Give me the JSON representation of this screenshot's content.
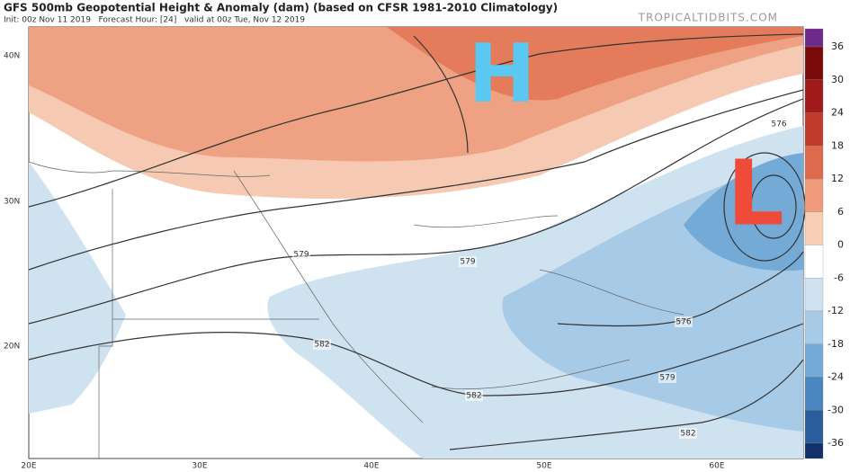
{
  "header": {
    "title": "GFS 500mb Geopotential Height & Anomaly (dam) (based on CFSR 1981-2010 Climatology)",
    "subtitle": "Init: 00z Nov 11 2019   Forecast Hour: [24]   valid at 00z Tue, Nov 12 2019",
    "site": "TROPICALTIDBITS.COM"
  },
  "map": {
    "latitude_labels": [
      "40N",
      "30N",
      "20N"
    ],
    "longitude_labels": [
      "20E",
      "30E",
      "40E",
      "50E",
      "60E"
    ],
    "contour_labels": [
      "579",
      "579",
      "582",
      "582",
      "579",
      "582",
      "576",
      "576"
    ],
    "pressure_centers": [
      "H",
      "L"
    ]
  },
  "colorbar": {
    "labels": [
      "36",
      "30",
      "24",
      "18",
      "12",
      "6",
      "0",
      "-6",
      "-12",
      "-18",
      "-24",
      "-30",
      "-36"
    ],
    "colors": [
      "#6d2a8a",
      "#7a0a0a",
      "#a0191b",
      "#c23a2c",
      "#dd6a4c",
      "#ee9a7b",
      "#f8cdb5",
      "#ffffff",
      "#cfe2f0",
      "#a7cbe6",
      "#74aad6",
      "#4a86c0",
      "#2a5d9c",
      "#12306a"
    ]
  }
}
